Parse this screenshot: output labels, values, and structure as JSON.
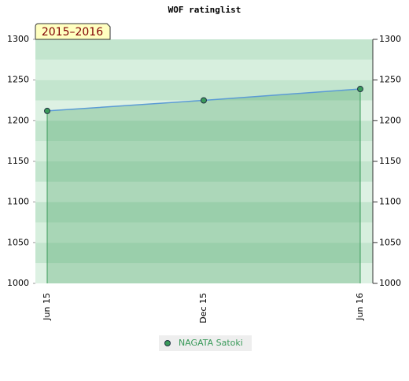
{
  "chart_data": {
    "type": "area",
    "title": "WOF ratinglist",
    "annotation": "2015–2016",
    "categories": [
      "Jun 15",
      "Dec 15",
      "Jun 16"
    ],
    "series": [
      {
        "name": "NAGATA Satoki",
        "color": "#3a9a5a",
        "line_color": "#5b9bd5",
        "values": [
          1212,
          1225,
          1239
        ]
      }
    ],
    "ylim": [
      1000,
      1300
    ],
    "yticks": [
      1000,
      1050,
      1100,
      1150,
      1200,
      1250,
      1300
    ],
    "y2lim": [
      1000,
      1300
    ],
    "y2ticks": [
      1000,
      1050,
      1100,
      1150,
      1200,
      1250,
      1300
    ]
  }
}
